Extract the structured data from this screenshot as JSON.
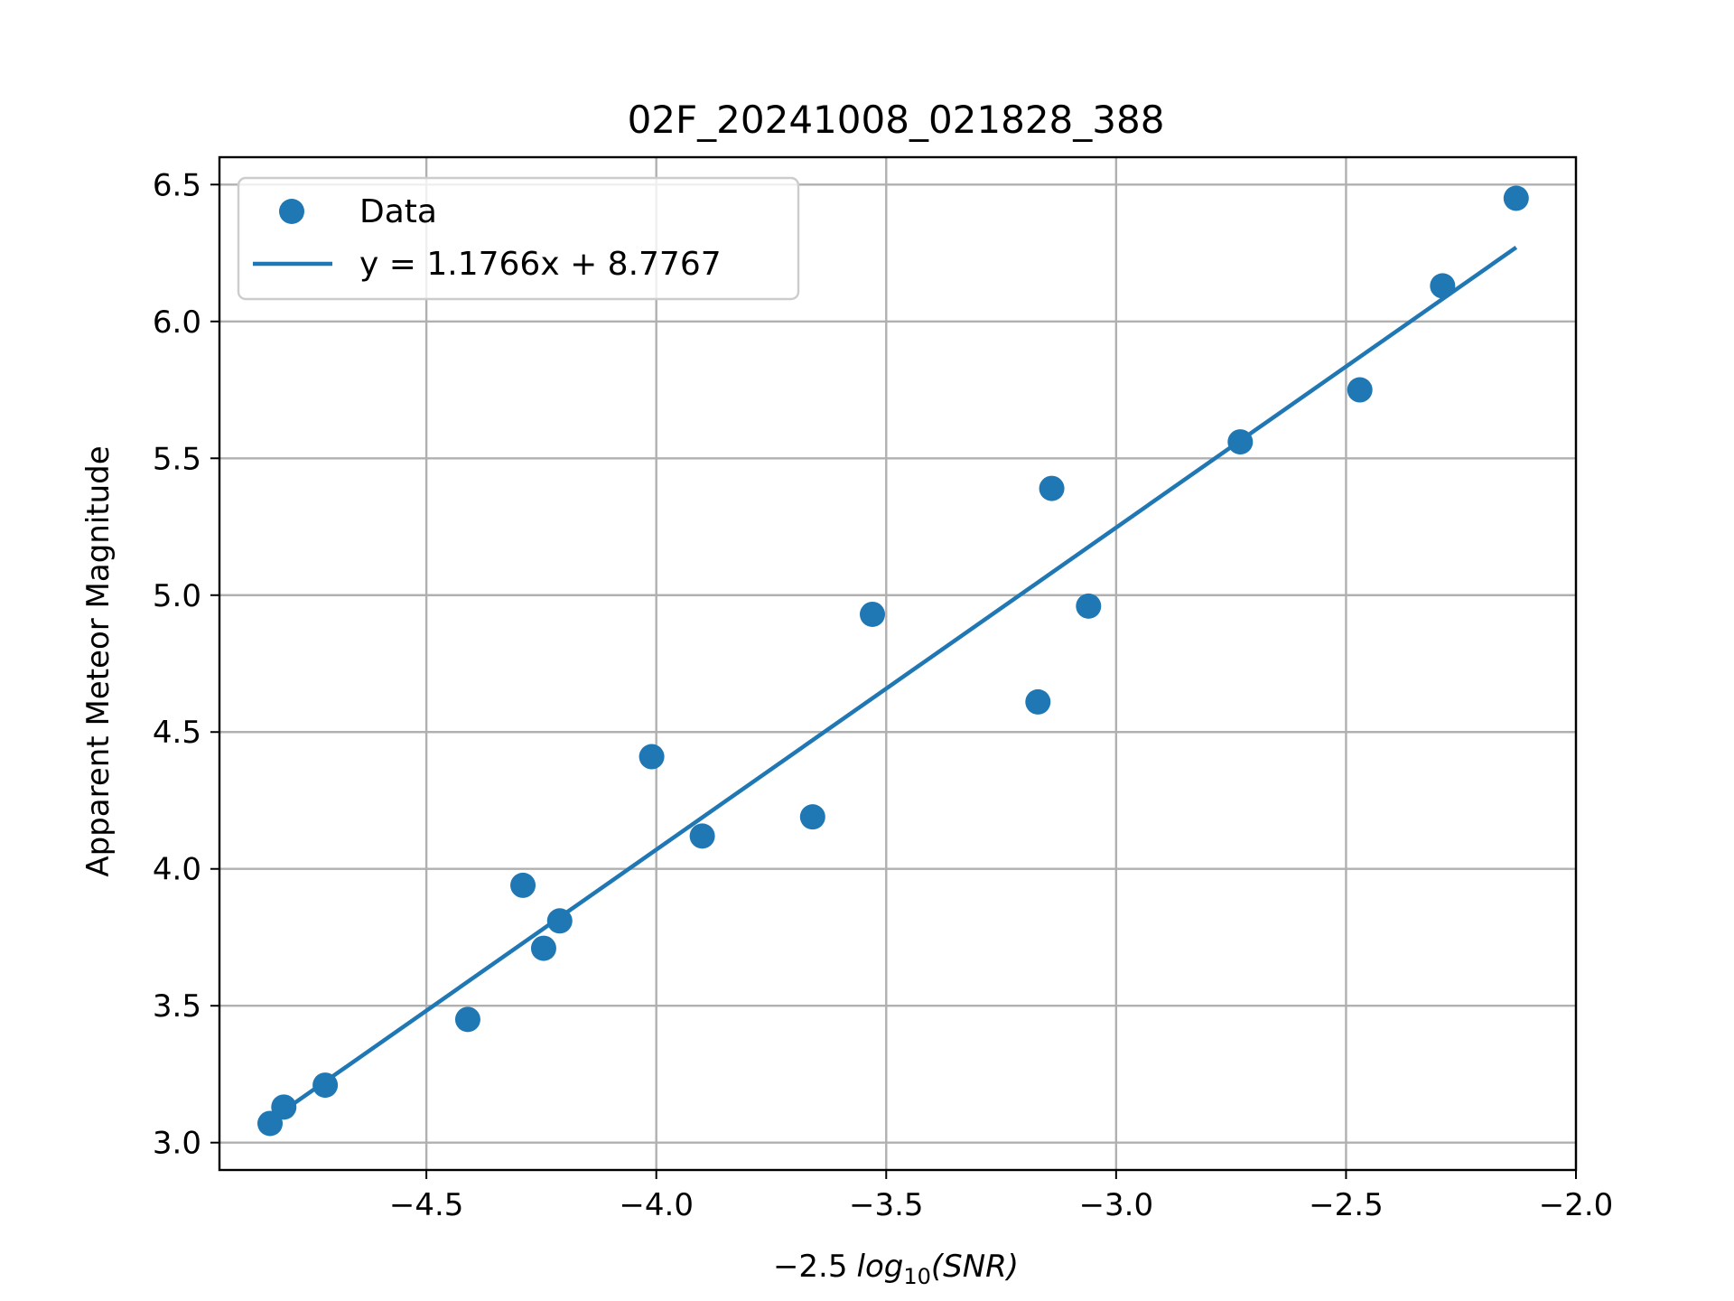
{
  "chart_data": {
    "type": "scatter",
    "title": "02F_20241008_021828_388",
    "xlabel_prefix": "−2.5",
    "xlabel_func": "log",
    "xlabel_sub": "10",
    "xlabel_arg": "(SNR)",
    "ylabel": "Apparent Meteor Magnitude",
    "xlim": [
      -4.95,
      -2.0
    ],
    "ylim": [
      2.9,
      6.6
    ],
    "xticks": [
      -4.5,
      -4.0,
      -3.5,
      -3.0,
      -2.5,
      -2.0
    ],
    "xtick_labels": [
      "−4.5",
      "−4.0",
      "−3.5",
      "−3.0",
      "−2.5",
      "−2.0"
    ],
    "yticks": [
      3.0,
      3.5,
      4.0,
      4.5,
      5.0,
      5.5,
      6.0,
      6.5
    ],
    "ytick_labels": [
      "3.0",
      "3.5",
      "4.0",
      "4.5",
      "5.0",
      "5.5",
      "6.0",
      "6.5"
    ],
    "grid": true,
    "series": [
      {
        "name": "Data",
        "kind": "scatter",
        "color": "#1f77b4",
        "points": [
          [
            -4.84,
            3.07
          ],
          [
            -4.81,
            3.13
          ],
          [
            -4.72,
            3.21
          ],
          [
            -4.41,
            3.45
          ],
          [
            -4.29,
            3.94
          ],
          [
            -4.245,
            3.71
          ],
          [
            -4.21,
            3.81
          ],
          [
            -4.01,
            4.41
          ],
          [
            -3.9,
            4.12
          ],
          [
            -3.66,
            4.19
          ],
          [
            -3.53,
            4.93
          ],
          [
            -3.17,
            4.61
          ],
          [
            -3.14,
            5.39
          ],
          [
            -3.06,
            4.96
          ],
          [
            -2.73,
            5.56
          ],
          [
            -2.47,
            5.75
          ],
          [
            -2.29,
            6.13
          ],
          [
            -2.13,
            6.45
          ]
        ]
      },
      {
        "name": "y = 1.1766x + 8.7767",
        "kind": "line",
        "color": "#1f77b4",
        "slope": 1.1766,
        "intercept": 8.7767,
        "x_range": [
          -4.84,
          -2.13
        ]
      }
    ],
    "legend": {
      "location": "upper-left",
      "entries": [
        "Data",
        "y = 1.1766x + 8.7767"
      ]
    }
  }
}
